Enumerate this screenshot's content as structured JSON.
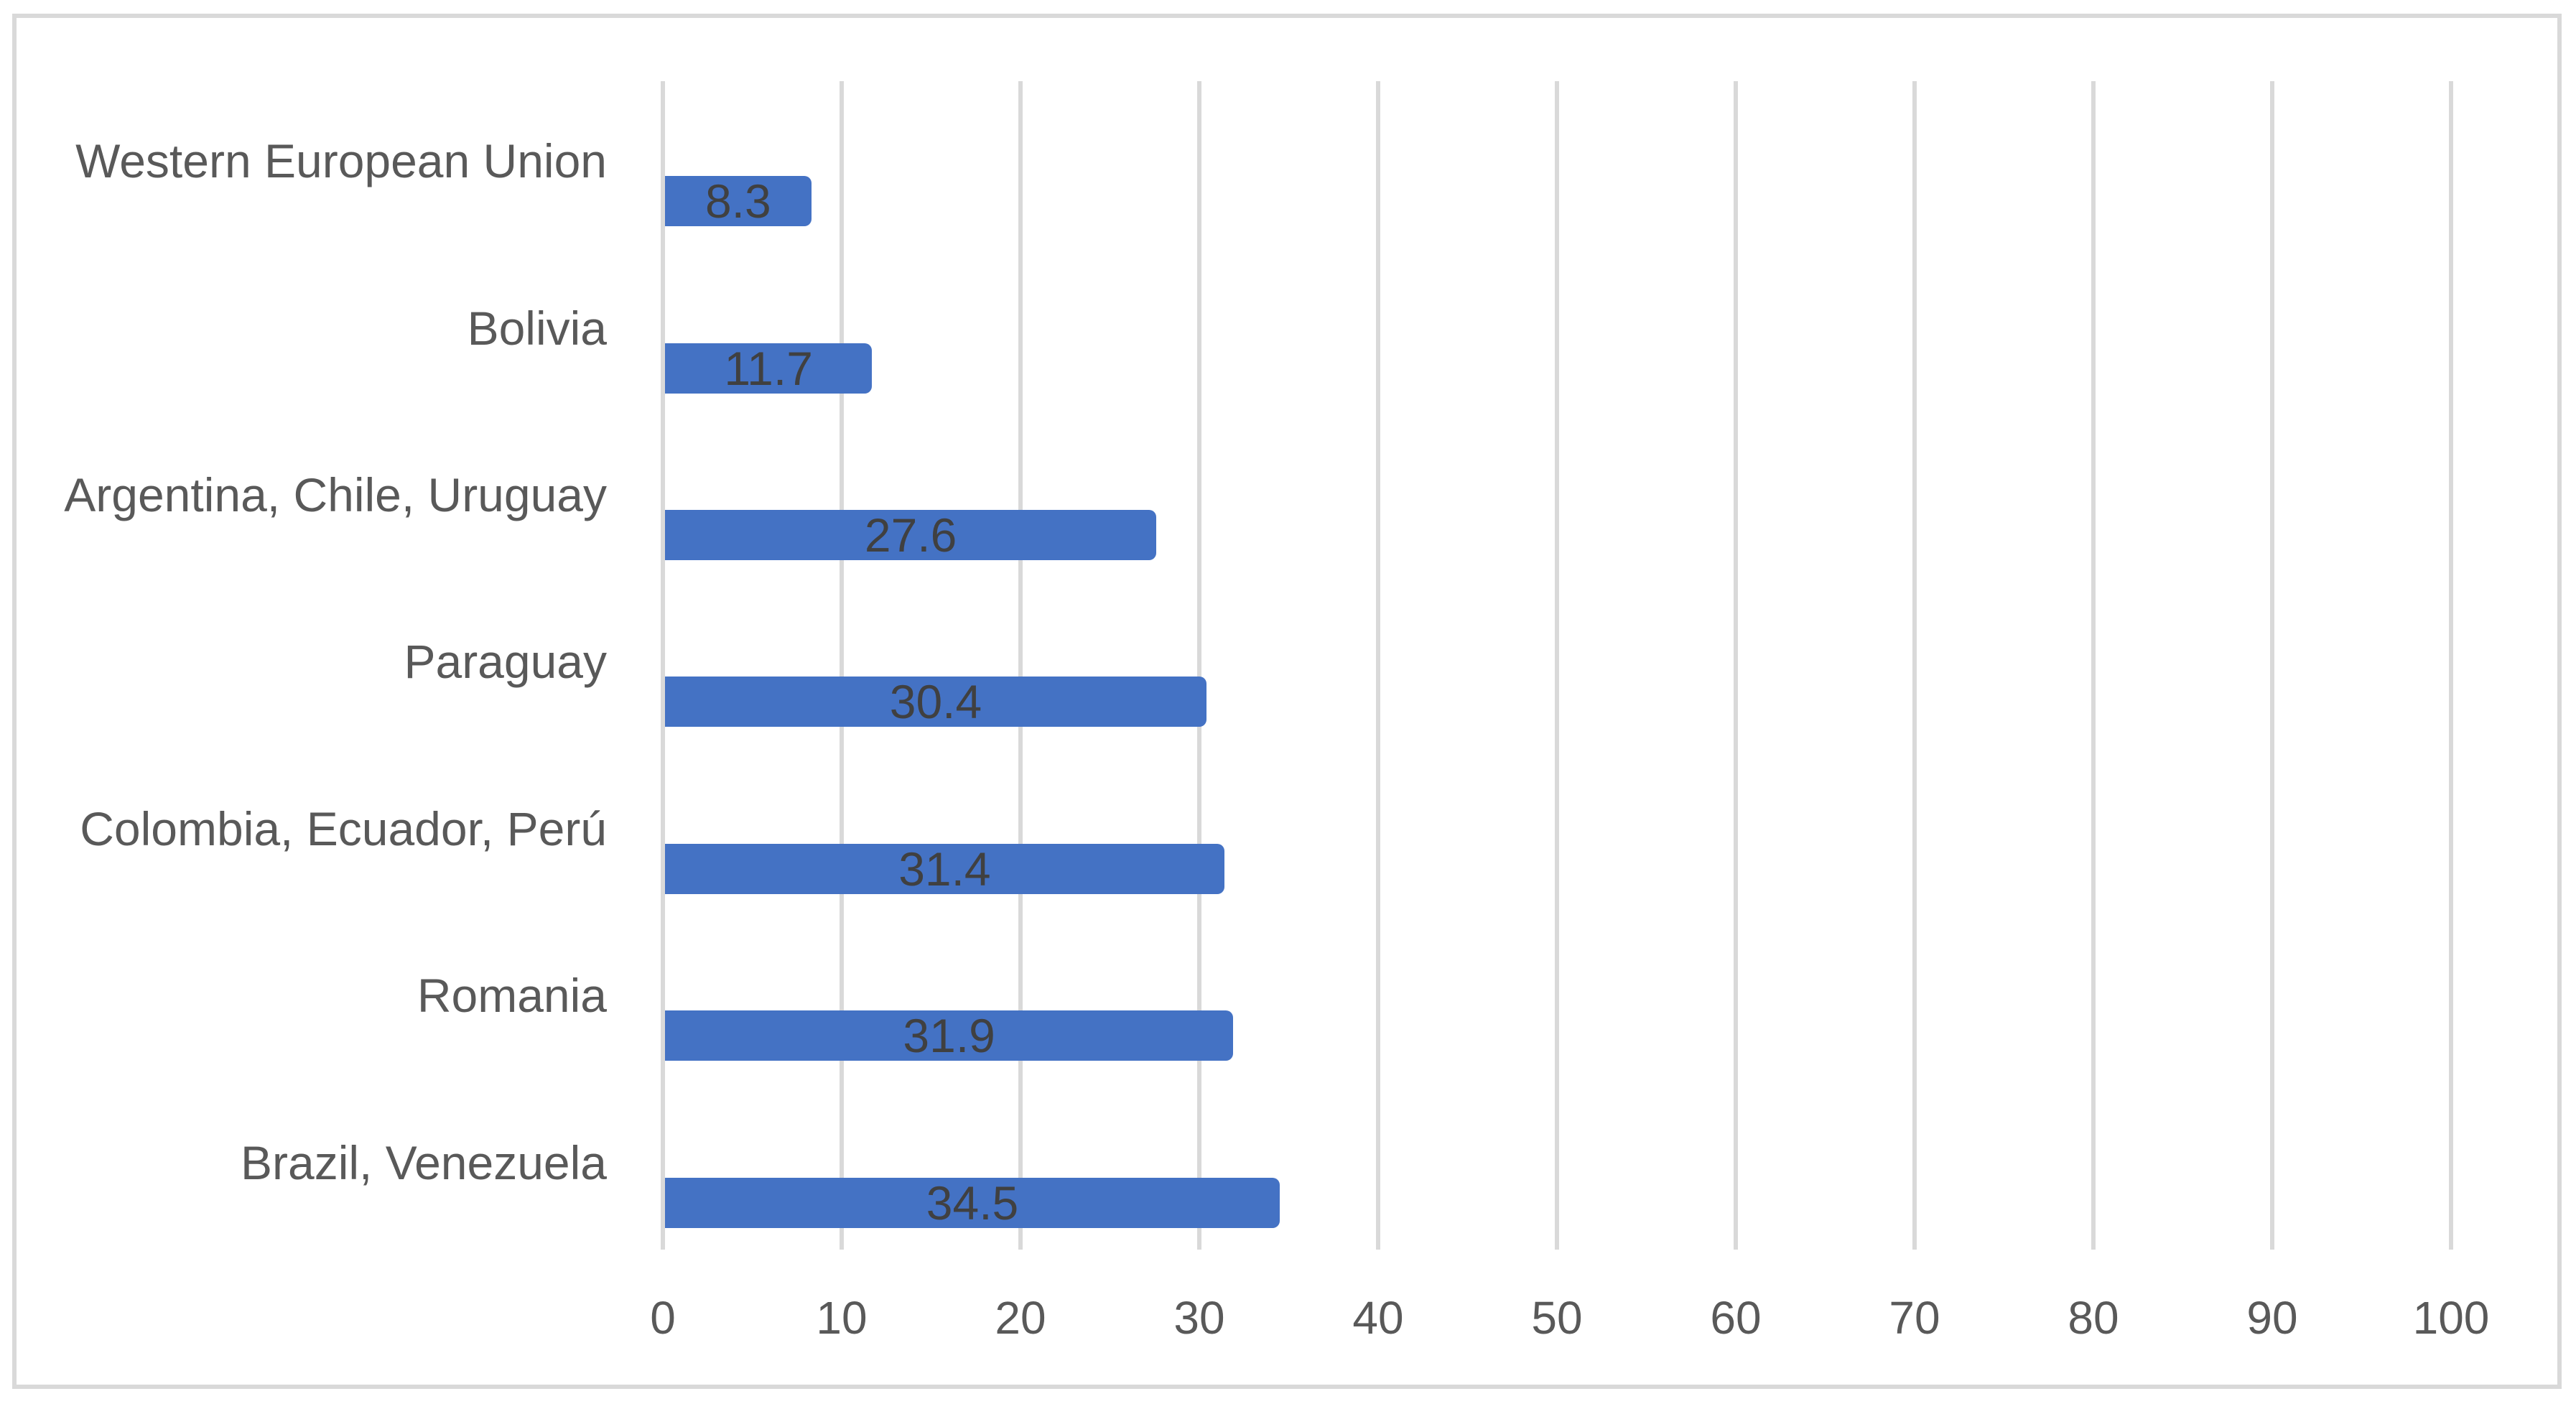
{
  "chart_data": {
    "type": "bar",
    "orientation": "horizontal",
    "title": "",
    "xlabel": "",
    "ylabel": "",
    "categories": [
      "Western European Union",
      "Bolivia",
      "Argentina, Chile, Uruguay",
      "Paraguay",
      "Colombia, Ecuador, Perú",
      "Romania",
      "Brazil, Venezuela"
    ],
    "values": [
      8.3,
      11.7,
      27.6,
      30.4,
      31.4,
      31.9,
      34.5
    ],
    "data_labels": [
      "8.3",
      "11.7",
      "27.6",
      "30.4",
      "31.4",
      "31.9",
      "34.5"
    ],
    "xlim": [
      0,
      100
    ],
    "x_ticks": [
      0,
      10,
      20,
      30,
      40,
      50,
      60,
      70,
      80,
      90,
      100
    ],
    "grid": true,
    "legend": false,
    "colors": {
      "bar": "#4472C4",
      "gridline": "#D9D9D9",
      "frame_border": "#D9D9D9",
      "axis_label": "#595959",
      "category_label": "#595959",
      "data_label": "#404040",
      "background": "#FFFFFF"
    }
  }
}
